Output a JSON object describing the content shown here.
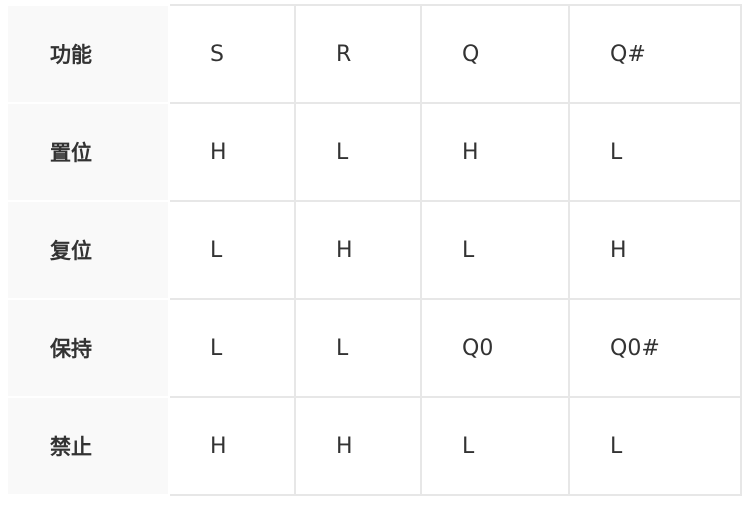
{
  "table": {
    "rows": [
      {
        "label": "功能",
        "cells": [
          "S",
          "R",
          "Q",
          "Q#"
        ]
      },
      {
        "label": "置位",
        "cells": [
          "H",
          "L",
          "H",
          "L"
        ]
      },
      {
        "label": "复位",
        "cells": [
          "L",
          "H",
          "L",
          "H"
        ]
      },
      {
        "label": "保持",
        "cells": [
          "L",
          "L",
          "Q0",
          "Q0#"
        ]
      },
      {
        "label": "禁止",
        "cells": [
          "H",
          "H",
          "L",
          "L"
        ]
      }
    ]
  }
}
